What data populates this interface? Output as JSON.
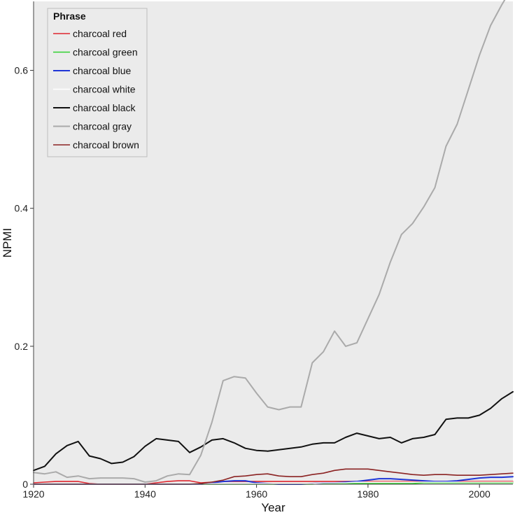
{
  "chart_data": {
    "type": "line",
    "xlabel": "Year",
    "ylabel": "NPMI",
    "xlim": [
      1920,
      2006
    ],
    "ylim": [
      0,
      0.7
    ],
    "xticks": [
      1920,
      1940,
      1960,
      1980,
      2000
    ],
    "yticks": [
      0,
      0.2,
      0.4,
      0.6
    ],
    "xtick_labels": [
      "1920",
      "1940",
      "1960",
      "1980",
      "2000"
    ],
    "ytick_labels": [
      "0",
      "0.2",
      "0.4",
      "0.6"
    ],
    "grid": false,
    "background_color": "#ebebeb",
    "legend": {
      "title": "Phrase",
      "position": "top-left"
    },
    "x": [
      1920,
      1922,
      1924,
      1926,
      1928,
      1930,
      1932,
      1934,
      1936,
      1938,
      1940,
      1942,
      1944,
      1946,
      1948,
      1950,
      1952,
      1954,
      1956,
      1958,
      1960,
      1962,
      1964,
      1966,
      1968,
      1970,
      1972,
      1974,
      1976,
      1978,
      1980,
      1982,
      1984,
      1986,
      1988,
      1990,
      1992,
      1994,
      1996,
      1998,
      2000,
      2002,
      2004,
      2006
    ],
    "series": [
      {
        "name": "charcoal red",
        "color": "#e0262f",
        "width": 1.6,
        "values": [
          0.002,
          0.003,
          0.004,
          0.004,
          0.004,
          0.001,
          0.0,
          0.0,
          0.0,
          0.0,
          0.0,
          0.002,
          0.004,
          0.005,
          0.005,
          0.002,
          0.003,
          0.004,
          0.004,
          0.004,
          0.004,
          0.004,
          0.004,
          0.004,
          0.004,
          0.004,
          0.004,
          0.004,
          0.004,
          0.004,
          0.004,
          0.004,
          0.004,
          0.004,
          0.004,
          0.004,
          0.004,
          0.004,
          0.004,
          0.004,
          0.004,
          0.004,
          0.004,
          0.004
        ]
      },
      {
        "name": "charcoal green",
        "color": "#2fd12f",
        "width": 1.6,
        "values": [
          0.0,
          0.0,
          0.0,
          0.0,
          0.0,
          0.0,
          0.0,
          0.0,
          0.0,
          0.0,
          0.0,
          0.0,
          0.0,
          0.0,
          0.0,
          0.0,
          0.0,
          0.0,
          0.0,
          0.0,
          0.0,
          0.0,
          0.0,
          0.0,
          0.0,
          0.0,
          0.001,
          0.001,
          0.001,
          0.001,
          0.001,
          0.001,
          0.001,
          0.001,
          0.001,
          0.002,
          0.002,
          0.002,
          0.002,
          0.002,
          0.002,
          0.002,
          0.002,
          0.002
        ]
      },
      {
        "name": "charcoal blue",
        "color": "#1f35d6",
        "width": 2,
        "values": [
          0.0,
          0.0,
          0.0,
          0.0,
          0.0,
          0.0,
          0.0,
          0.0,
          0.0,
          0.0,
          0.0,
          0.0,
          0.0,
          0.0,
          0.0,
          0.0,
          0.002,
          0.004,
          0.005,
          0.005,
          0.002,
          0.001,
          0.0,
          0.0,
          0.0,
          0.001,
          0.002,
          0.002,
          0.003,
          0.004,
          0.006,
          0.008,
          0.008,
          0.007,
          0.006,
          0.005,
          0.004,
          0.004,
          0.005,
          0.007,
          0.009,
          0.01,
          0.01,
          0.011
        ]
      },
      {
        "name": "charcoal white",
        "color": "#ffffff",
        "width": 1.6,
        "values": [
          0.0,
          0.0,
          0.0,
          0.0,
          0.0,
          0.0,
          0.0,
          0.0,
          0.0,
          0.0,
          0.0,
          0.0,
          0.0,
          0.0,
          0.0,
          0.0,
          0.001,
          0.001,
          0.001,
          0.001,
          0.001,
          0.001,
          0.001,
          0.001,
          0.001,
          0.001,
          0.002,
          0.002,
          0.002,
          0.003,
          0.003,
          0.003,
          0.003,
          0.003,
          0.003,
          0.003,
          0.003,
          0.003,
          0.003,
          0.003,
          0.003,
          0.003,
          0.003,
          0.003
        ]
      },
      {
        "name": "charcoal black",
        "color": "#111111",
        "width": 2,
        "values": [
          0.02,
          0.026,
          0.044,
          0.056,
          0.062,
          0.041,
          0.037,
          0.03,
          0.032,
          0.04,
          0.055,
          0.066,
          0.064,
          0.062,
          0.046,
          0.054,
          0.064,
          0.066,
          0.06,
          0.052,
          0.049,
          0.048,
          0.05,
          0.052,
          0.054,
          0.058,
          0.06,
          0.06,
          0.068,
          0.074,
          0.07,
          0.066,
          0.068,
          0.06,
          0.066,
          0.068,
          0.072,
          0.094,
          0.096,
          0.096,
          0.1,
          0.11,
          0.124,
          0.134
        ]
      },
      {
        "name": "charcoal gray",
        "color": "#aaaaaa",
        "width": 2,
        "values": [
          0.017,
          0.015,
          0.018,
          0.01,
          0.012,
          0.008,
          0.009,
          0.009,
          0.009,
          0.008,
          0.003,
          0.005,
          0.012,
          0.015,
          0.014,
          0.042,
          0.09,
          0.15,
          0.156,
          0.154,
          0.132,
          0.112,
          0.108,
          0.112,
          0.112,
          0.176,
          0.192,
          0.222,
          0.2,
          0.205,
          0.24,
          0.275,
          0.322,
          0.362,
          0.378,
          0.402,
          0.43,
          0.49,
          0.522,
          0.572,
          0.622,
          0.665,
          0.695,
          0.722
        ]
      },
      {
        "name": "charcoal brown",
        "color": "#8b2323",
        "width": 1.6,
        "values": [
          0.0,
          0.0,
          0.0,
          0.0,
          0.0,
          0.0,
          0.0,
          0.0,
          0.0,
          0.0,
          0.0,
          0.0,
          0.0,
          0.0,
          0.0,
          0.001,
          0.003,
          0.006,
          0.011,
          0.012,
          0.014,
          0.015,
          0.012,
          0.011,
          0.011,
          0.014,
          0.016,
          0.02,
          0.022,
          0.022,
          0.022,
          0.02,
          0.018,
          0.016,
          0.014,
          0.013,
          0.014,
          0.014,
          0.013,
          0.013,
          0.013,
          0.014,
          0.015,
          0.016
        ]
      }
    ]
  }
}
